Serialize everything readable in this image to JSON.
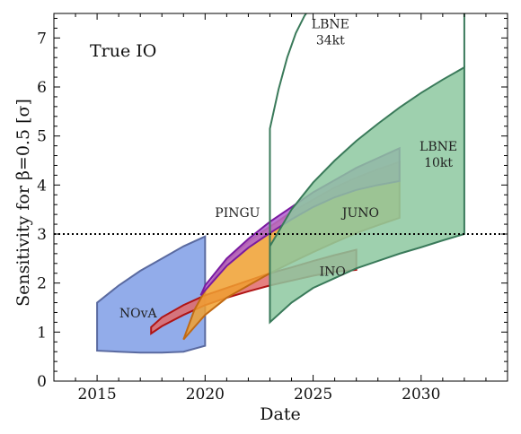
{
  "chart_data": {
    "type": "area",
    "title": "",
    "annotation": "True IO",
    "xlabel": "Date",
    "ylabel": "Sensitivity for β=0.5 [σ]",
    "xlim": [
      2013,
      2034
    ],
    "ylim": [
      0,
      7.5
    ],
    "xticks": [
      2015,
      2020,
      2025,
      2030
    ],
    "yticks": [
      0,
      1,
      2,
      3,
      4,
      5,
      6,
      7
    ],
    "threshold": 3,
    "grid": false,
    "series": [
      {
        "name": "NOvA",
        "color": "#7f9ee6",
        "edge": "#5a6aa0",
        "upper": {
          "x": [
            2015,
            2016,
            2017,
            2018,
            2019,
            2020
          ],
          "y": [
            1.6,
            1.95,
            2.25,
            2.5,
            2.75,
            2.95
          ]
        },
        "lower": {
          "x": [
            2015,
            2016,
            2017,
            2018,
            2019,
            2020
          ],
          "y": [
            0.62,
            0.6,
            0.58,
            0.58,
            0.6,
            0.72
          ]
        }
      },
      {
        "name": "INO",
        "color": "#e06a6a",
        "edge": "#b01414",
        "upper": {
          "x": [
            2017.5,
            2018,
            2019,
            2020,
            2021,
            2022,
            2023,
            2024,
            2025,
            2026,
            2027
          ],
          "y": [
            1.1,
            1.3,
            1.55,
            1.75,
            1.9,
            2.05,
            2.2,
            2.32,
            2.45,
            2.57,
            2.68
          ]
        },
        "lower": {
          "x": [
            2017.5,
            2018,
            2019,
            2020,
            2021,
            2022,
            2023,
            2024,
            2025,
            2026,
            2027
          ],
          "y": [
            0.97,
            1.12,
            1.35,
            1.55,
            1.7,
            1.83,
            1.95,
            2.05,
            2.15,
            2.23,
            2.27
          ]
        }
      },
      {
        "name": "JUNO",
        "color": "#f0a030",
        "edge": "#c06a14",
        "upper": {
          "x": [
            2019,
            2019.5,
            2020,
            2021,
            2022,
            2023,
            2024,
            2025,
            2026,
            2027,
            2028,
            2029
          ],
          "y": [
            0.85,
            1.45,
            1.85,
            2.45,
            2.85,
            3.15,
            3.45,
            3.7,
            3.95,
            4.15,
            4.32,
            4.47
          ]
        },
        "lower": {
          "x": [
            2019,
            2019.5,
            2020,
            2021,
            2022,
            2023,
            2024,
            2025,
            2026,
            2027,
            2028,
            2029
          ],
          "y": [
            0.85,
            1.1,
            1.35,
            1.7,
            1.95,
            2.2,
            2.42,
            2.63,
            2.83,
            3.02,
            3.18,
            3.33
          ]
        }
      },
      {
        "name": "PINGU",
        "color": "#b060d0",
        "edge": "#7a1aa0",
        "upper": {
          "x": [
            2019.8,
            2020,
            2021,
            2022,
            2023,
            2024,
            2025,
            2026,
            2027,
            2028,
            2029
          ],
          "y": [
            1.75,
            1.95,
            2.5,
            2.9,
            3.25,
            3.55,
            3.85,
            4.1,
            4.35,
            4.55,
            4.75
          ]
        },
        "lower": {
          "x": [
            2019.8,
            2020,
            2021,
            2022,
            2023,
            2024,
            2025,
            2026,
            2027,
            2028,
            2029
          ],
          "y": [
            1.75,
            1.85,
            2.35,
            2.72,
            3.02,
            3.3,
            3.55,
            3.75,
            3.9,
            4.0,
            4.08
          ]
        }
      },
      {
        "name": "LBNE\n10kt",
        "color": "#8dc8a0",
        "edge": "#3a7a5a",
        "upper": {
          "x": [
            2023,
            2024,
            2025,
            2026,
            2027,
            2028,
            2029,
            2030,
            2031,
            2032
          ],
          "y": [
            2.75,
            3.5,
            4.05,
            4.5,
            4.9,
            5.25,
            5.58,
            5.88,
            6.15,
            6.4
          ]
        },
        "lower": {
          "x": [
            2023,
            2024,
            2025,
            2026,
            2027,
            2028,
            2029,
            2030,
            2031,
            2032
          ],
          "y": [
            1.2,
            1.6,
            1.9,
            2.1,
            2.3,
            2.45,
            2.6,
            2.73,
            2.87,
            3.0
          ]
        }
      },
      {
        "name": "LBNE\n34kt",
        "color": "none",
        "edge": "#3a7a5a",
        "upper": {
          "x": [
            2023,
            2023.4,
            2023.8,
            2024.2,
            2024.6,
            2025
          ],
          "y": [
            5.15,
            5.95,
            6.6,
            7.1,
            7.45,
            7.7
          ]
        },
        "lower": {
          "x": [
            2023
          ],
          "y": [
            1.2
          ]
        }
      }
    ]
  }
}
